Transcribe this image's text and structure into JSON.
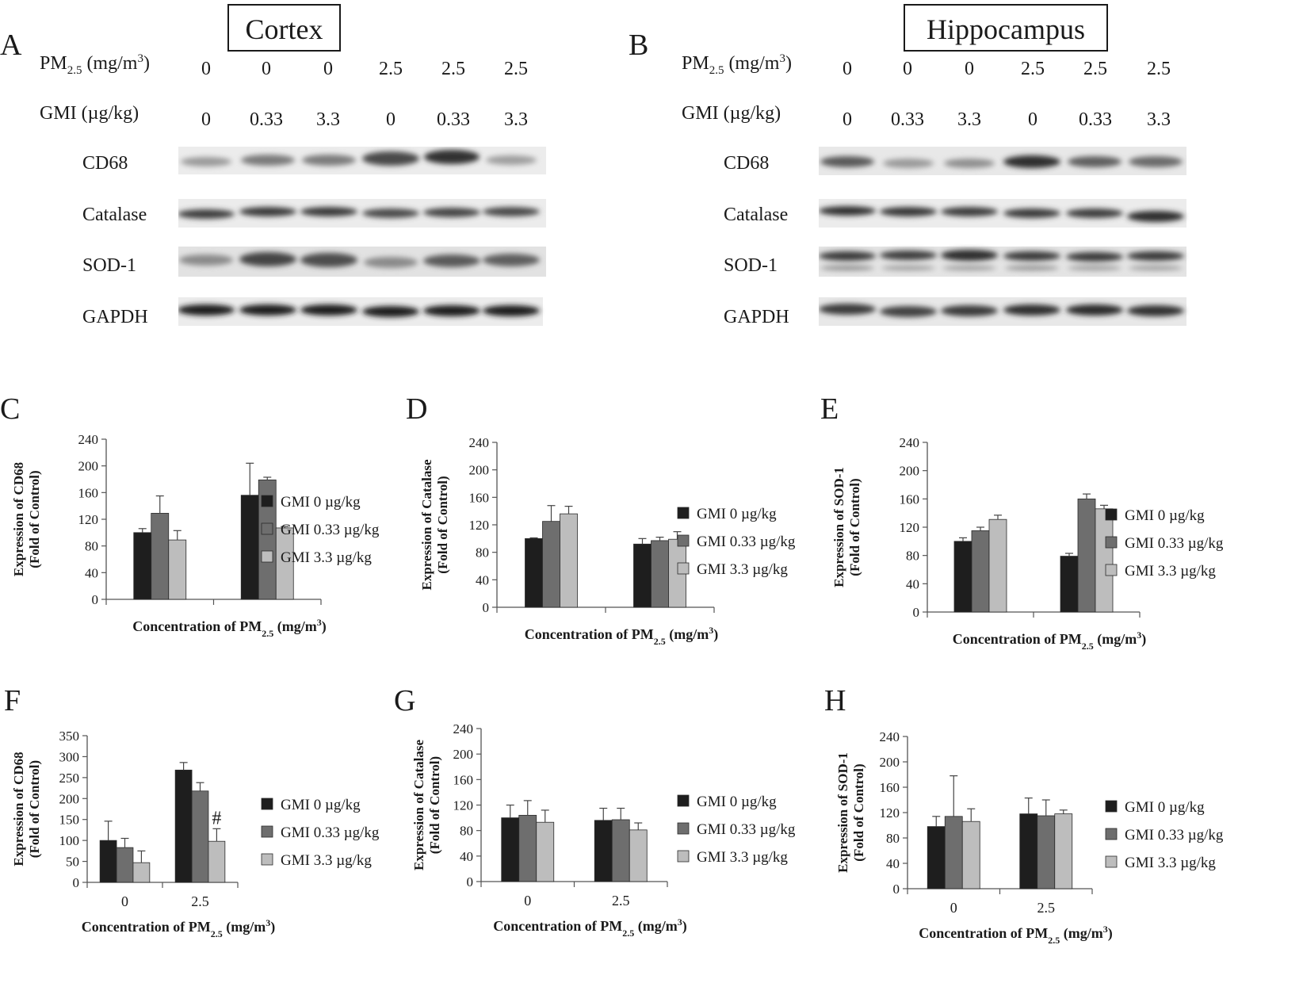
{
  "blots": {
    "cortex": {
      "letter": "A",
      "region": "Cortex",
      "pm_label": "PM",
      "pm_sub": "2.5",
      "pm_units_pre": " (mg/m",
      "pm_units_sup": "3",
      "pm_units_post": ")",
      "gmi_label": "GMI (µg/kg)",
      "pm_values": [
        "0",
        "0",
        "0",
        "2.5",
        "2.5",
        "2.5"
      ],
      "gmi_values": [
        "0",
        "0.33",
        "3.3",
        "0",
        "0.33",
        "3.3"
      ],
      "proteins": [
        "CD68",
        "Catalase",
        "SOD-1",
        "GAPDH"
      ]
    },
    "hippocampus": {
      "letter": "B",
      "region": "Hippocampus",
      "pm_label": "PM",
      "pm_sub": "2.5",
      "pm_units_pre": " (mg/m",
      "pm_units_sup": "3",
      "pm_units_post": ")",
      "gmi_label": "GMI (µg/kg)",
      "pm_values": [
        "0",
        "0",
        "0",
        "2.5",
        "2.5",
        "2.5"
      ],
      "gmi_values": [
        "0",
        "0.33",
        "3.3",
        "0",
        "0.33",
        "3.3"
      ],
      "proteins": [
        "CD68",
        "Catalase",
        "SOD-1",
        "GAPDH"
      ]
    }
  },
  "series_colors": [
    "#1e1e1e",
    "#6e6e6e",
    "#bdbdbd"
  ],
  "chart_data": [
    {
      "panel": "C",
      "type": "bar",
      "categories": [
        "",
        ""
      ],
      "series": [
        {
          "name": "GMI 0 µg/kg",
          "values": [
            100,
            156
          ],
          "errors": [
            6,
            48
          ]
        },
        {
          "name": "GMI 0.33 µg/kg",
          "values": [
            129,
            179
          ],
          "errors": [
            26,
            4
          ]
        },
        {
          "name": "GMI 3.3 µg/kg",
          "values": [
            89,
            107
          ],
          "errors": [
            14,
            2
          ]
        }
      ],
      "xlabel": "Concentration of PM",
      "xlabel_sub": "2.5",
      "xlabel_units": " (mg/m",
      "xlabel_sup": "3",
      "xlabel_end": ")",
      "ylabel": [
        "Expression of CD68",
        "(Fold of Control)"
      ],
      "ylim": [
        0,
        240
      ],
      "yticks": [
        0,
        40,
        80,
        120,
        160,
        200,
        240
      ],
      "annotations": [
        "",
        ""
      ],
      "legend": "right",
      "grid": false
    },
    {
      "panel": "D",
      "type": "bar",
      "categories": [
        "",
        ""
      ],
      "series": [
        {
          "name": "GMI 0 µg/kg",
          "values": [
            100,
            92
          ],
          "errors": [
            1,
            8
          ]
        },
        {
          "name": "GMI 0.33 µg/kg",
          "values": [
            125,
            97
          ],
          "errors": [
            23,
            5
          ]
        },
        {
          "name": "GMI 3.3 µg/kg",
          "values": [
            136,
            99
          ],
          "errors": [
            11,
            11
          ]
        }
      ],
      "xlabel": "Concentration of PM",
      "xlabel_sub": "2.5",
      "xlabel_units": " (mg/m",
      "xlabel_sup": "3",
      "xlabel_end": ")",
      "ylabel": [
        "Expression of Catalase",
        "(Fold of Control)"
      ],
      "ylim": [
        0,
        240
      ],
      "yticks": [
        0,
        40,
        80,
        120,
        160,
        200,
        240
      ],
      "annotations": [
        "",
        ""
      ],
      "legend": "right",
      "grid": false
    },
    {
      "panel": "E",
      "type": "bar",
      "categories": [
        "",
        ""
      ],
      "series": [
        {
          "name": "GMI 0 µg/kg",
          "values": [
            100,
            79
          ],
          "errors": [
            5,
            4
          ]
        },
        {
          "name": "GMI 0.33 µg/kg",
          "values": [
            115,
            160
          ],
          "errors": [
            5,
            7
          ]
        },
        {
          "name": "GMI 3.3 µg/kg",
          "values": [
            131,
            146
          ],
          "errors": [
            6,
            5
          ]
        }
      ],
      "xlabel": "Concentration of PM",
      "xlabel_sub": "2.5",
      "xlabel_units": " (mg/m",
      "xlabel_sup": "3",
      "xlabel_end": ")",
      "ylabel": [
        "Expression of SOD-1",
        "(Fold of Control)"
      ],
      "ylim": [
        0,
        240
      ],
      "yticks": [
        0,
        40,
        80,
        120,
        160,
        200,
        240
      ],
      "annotations": [
        "",
        ""
      ],
      "legend": "right",
      "grid": false
    },
    {
      "panel": "F",
      "type": "bar",
      "categories": [
        "0",
        "2.5"
      ],
      "series": [
        {
          "name": "GMI 0 µg/kg",
          "values": [
            100,
            268
          ],
          "errors": [
            46,
            18
          ]
        },
        {
          "name": "GMI 0.33 µg/kg",
          "values": [
            83,
            218
          ],
          "errors": [
            22,
            20
          ]
        },
        {
          "name": "GMI 3.3 µg/kg",
          "values": [
            47,
            98
          ],
          "errors": [
            28,
            30
          ]
        }
      ],
      "xlabel": "Concentration of PM",
      "xlabel_sub": "2.5",
      "xlabel_units": " (mg/m",
      "xlabel_sup": "3",
      "xlabel_end": ")",
      "ylabel": [
        "Expression of CD68",
        "(Fold of Control)"
      ],
      "ylim": [
        0,
        350
      ],
      "yticks": [
        0,
        50,
        100,
        150,
        200,
        250,
        300,
        350
      ],
      "annotations": [
        "",
        "#"
      ],
      "legend": "right",
      "grid": false
    },
    {
      "panel": "G",
      "type": "bar",
      "categories": [
        "0",
        "2.5"
      ],
      "series": [
        {
          "name": "GMI 0 µg/kg",
          "values": [
            100,
            96
          ],
          "errors": [
            20,
            19
          ]
        },
        {
          "name": "GMI 0.33 µg/kg",
          "values": [
            104,
            97
          ],
          "errors": [
            23,
            18
          ]
        },
        {
          "name": "GMI 3.3 µg/kg",
          "values": [
            93,
            81
          ],
          "errors": [
            19,
            11
          ]
        }
      ],
      "xlabel": "Concentration of PM",
      "xlabel_sub": "2.5",
      "xlabel_units": " (mg/m",
      "xlabel_sup": "3",
      "xlabel_end": ")",
      "ylabel": [
        "Expression of Catalase",
        "(Fold of Control)"
      ],
      "ylim": [
        0,
        240
      ],
      "yticks": [
        0,
        40,
        80,
        120,
        160,
        200,
        240
      ],
      "annotations": [
        "",
        ""
      ],
      "legend": "right",
      "grid": false
    },
    {
      "panel": "H",
      "type": "bar",
      "categories": [
        "0",
        "2.5"
      ],
      "series": [
        {
          "name": "GMI 0 µg/kg",
          "values": [
            98,
            118
          ],
          "errors": [
            16,
            25
          ]
        },
        {
          "name": "GMI 0.33 µg/kg",
          "values": [
            114,
            115
          ],
          "errors": [
            64,
            25
          ]
        },
        {
          "name": "GMI 3.3 µg/kg",
          "values": [
            106,
            118
          ],
          "errors": [
            20,
            6
          ]
        }
      ],
      "xlabel": "Concentration of PM",
      "xlabel_sub": "2.5",
      "xlabel_units": " (mg/m",
      "xlabel_sup": "3",
      "xlabel_end": ")",
      "ylabel": [
        "Expression of SOD-1",
        "(Fold of Control)"
      ],
      "ylim": [
        0,
        240
      ],
      "yticks": [
        0,
        40,
        80,
        120,
        160,
        200,
        240
      ],
      "annotations": [
        "",
        ""
      ],
      "legend": "right",
      "grid": false
    }
  ]
}
